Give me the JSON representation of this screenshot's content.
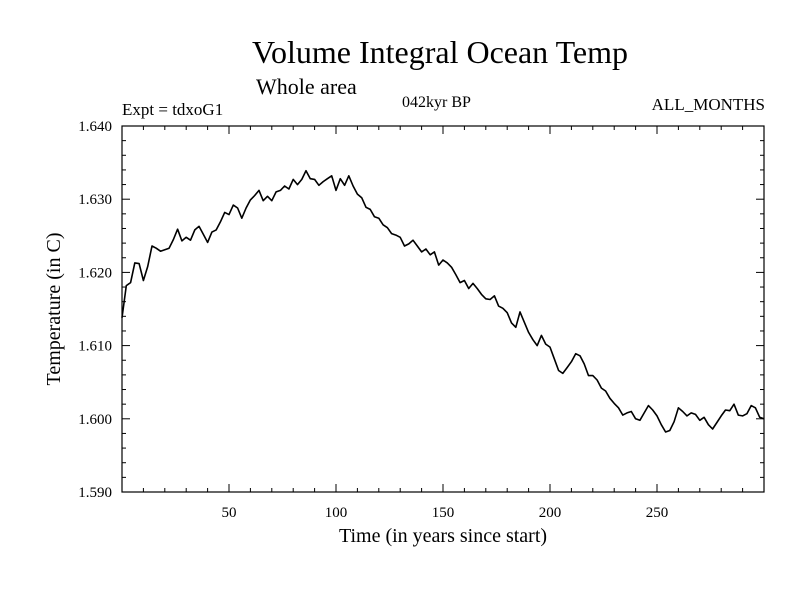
{
  "chart_data": {
    "type": "line",
    "title": "Volume Integral Ocean Temp",
    "subtitle": "Whole area",
    "expt_label": "Expt = tdxoG1",
    "period_label": "042kyr BP",
    "months_label": "ALL_MONTHS",
    "xlabel": "Time (in years since start)",
    "ylabel": "Temperature (in C)",
    "xlim": [
      0,
      300
    ],
    "ylim": [
      1.59,
      1.64
    ],
    "xticks": [
      50,
      100,
      150,
      200,
      250
    ],
    "xtick_labels": [
      "50",
      "100",
      "150",
      "200",
      "250"
    ],
    "yticks": [
      1.59,
      1.6,
      1.61,
      1.62,
      1.63,
      1.64
    ],
    "ytick_labels": [
      "1.590",
      "1.600",
      "1.610",
      "1.620",
      "1.630",
      "1.640"
    ],
    "line_color": "#000000",
    "series": [
      {
        "name": "Volume integral ocean temperature",
        "x": [
          0,
          2,
          4,
          6,
          8,
          10,
          12,
          14,
          16,
          18,
          20,
          22,
          24,
          26,
          28,
          30,
          32,
          34,
          36,
          38,
          40,
          42,
          44,
          46,
          48,
          50,
          52,
          54,
          56,
          58,
          60,
          62,
          64,
          66,
          68,
          70,
          72,
          74,
          76,
          78,
          80,
          82,
          84,
          86,
          88,
          90,
          92,
          94,
          96,
          98,
          100,
          102,
          104,
          106,
          108,
          110,
          112,
          114,
          116,
          118,
          120,
          122,
          124,
          126,
          128,
          130,
          132,
          134,
          136,
          138,
          140,
          142,
          144,
          146,
          148,
          150,
          152,
          154,
          156,
          158,
          160,
          162,
          164,
          166,
          168,
          170,
          172,
          174,
          176,
          178,
          180,
          182,
          184,
          186,
          188,
          190,
          192,
          194,
          196,
          198,
          200,
          202,
          204,
          206,
          208,
          210,
          212,
          214,
          216,
          218,
          220,
          222,
          224,
          226,
          228,
          230,
          232,
          234,
          236,
          238,
          240,
          242,
          244,
          246,
          248,
          250,
          252,
          254,
          256,
          258,
          260,
          262,
          264,
          266,
          268,
          270,
          272,
          274,
          276,
          278,
          280,
          282,
          284,
          286,
          288,
          290,
          292,
          294,
          296,
          298,
          300
        ],
        "values": [
          1.6138,
          1.6182,
          1.6186,
          1.6213,
          1.6212,
          1.6189,
          1.6208,
          1.6236,
          1.6233,
          1.6229,
          1.6231,
          1.6233,
          1.6245,
          1.6259,
          1.6243,
          1.6248,
          1.6244,
          1.6258,
          1.6263,
          1.6252,
          1.6241,
          1.6255,
          1.6258,
          1.6269,
          1.6282,
          1.6279,
          1.6292,
          1.6288,
          1.6274,
          1.6288,
          1.6299,
          1.6305,
          1.6312,
          1.6298,
          1.6304,
          1.6298,
          1.631,
          1.6312,
          1.6318,
          1.6314,
          1.6327,
          1.632,
          1.6327,
          1.6339,
          1.6328,
          1.6327,
          1.6319,
          1.6324,
          1.6328,
          1.6332,
          1.6312,
          1.6328,
          1.6319,
          1.6332,
          1.6318,
          1.6307,
          1.6302,
          1.6289,
          1.6286,
          1.6276,
          1.6274,
          1.6265,
          1.6261,
          1.6253,
          1.6251,
          1.6248,
          1.6236,
          1.6239,
          1.6244,
          1.6236,
          1.6228,
          1.6232,
          1.6224,
          1.6228,
          1.621,
          1.6217,
          1.6213,
          1.6207,
          1.6197,
          1.6186,
          1.6189,
          1.6178,
          1.6185,
          1.6178,
          1.617,
          1.6164,
          1.6163,
          1.6168,
          1.6154,
          1.6151,
          1.6145,
          1.6131,
          1.6125,
          1.6146,
          1.6132,
          1.6118,
          1.6108,
          1.61,
          1.6114,
          1.6102,
          1.6098,
          1.6082,
          1.6066,
          1.6062,
          1.607,
          1.6078,
          1.6089,
          1.6086,
          1.6075,
          1.6059,
          1.6059,
          1.6053,
          1.6042,
          1.6038,
          1.6028,
          1.6021,
          1.6015,
          1.6005,
          1.6008,
          1.601,
          1.6,
          1.5998,
          1.6008,
          1.6018,
          1.6012,
          1.6004,
          1.5992,
          1.5982,
          1.5984,
          1.5996,
          1.6015,
          1.601,
          1.6004,
          1.6008,
          1.6006,
          1.5998,
          1.6002,
          1.5992,
          1.5986,
          1.5995,
          1.6004,
          1.6012,
          1.6011,
          1.602,
          1.6005,
          1.6004,
          1.6007,
          1.6018,
          1.6015,
          1.6002,
          1.6
        ]
      }
    ]
  }
}
